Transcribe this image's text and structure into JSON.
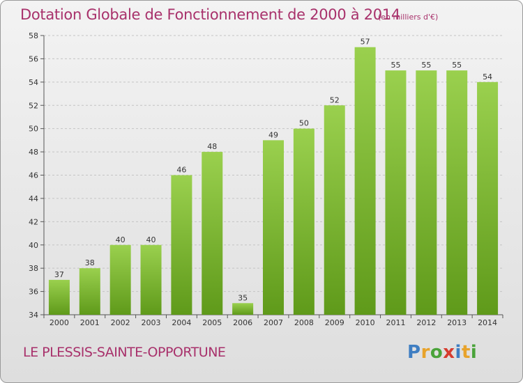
{
  "header": {
    "title": "Dotation Globale de Fonctionnement de 2000 à 2014",
    "unit": "(en milliers d'€)"
  },
  "footer": {
    "commune": "LE PLESSIS-SAINTE-OPPORTUNE",
    "logo_text": "Proxiti"
  },
  "colors": {
    "title": "#a8316b",
    "bar_top": "#9ad04e",
    "bar_bottom": "#5f9a1a",
    "logo": [
      "#3f7ec2",
      "#e8a32b",
      "#4aa33a",
      "#d63c2f",
      "#3f7ec2",
      "#e8a32b",
      "#4aa33a"
    ]
  },
  "chart_data": {
    "type": "bar",
    "title": "Dotation Globale de Fonctionnement de 2000 à 2014",
    "xlabel": "",
    "ylabel": "",
    "categories": [
      "2000",
      "2001",
      "2002",
      "2003",
      "2004",
      "2005",
      "2006",
      "2007",
      "2008",
      "2009",
      "2010",
      "2011",
      "2012",
      "2013",
      "2014"
    ],
    "values": [
      37,
      38,
      40,
      40,
      46,
      48,
      35,
      49,
      50,
      52,
      57,
      55,
      55,
      55,
      54
    ],
    "ylim": [
      34,
      58
    ],
    "yticks": [
      34,
      36,
      38,
      40,
      42,
      44,
      46,
      48,
      50,
      52,
      54,
      56,
      58
    ],
    "grid": true,
    "legend": "none"
  }
}
